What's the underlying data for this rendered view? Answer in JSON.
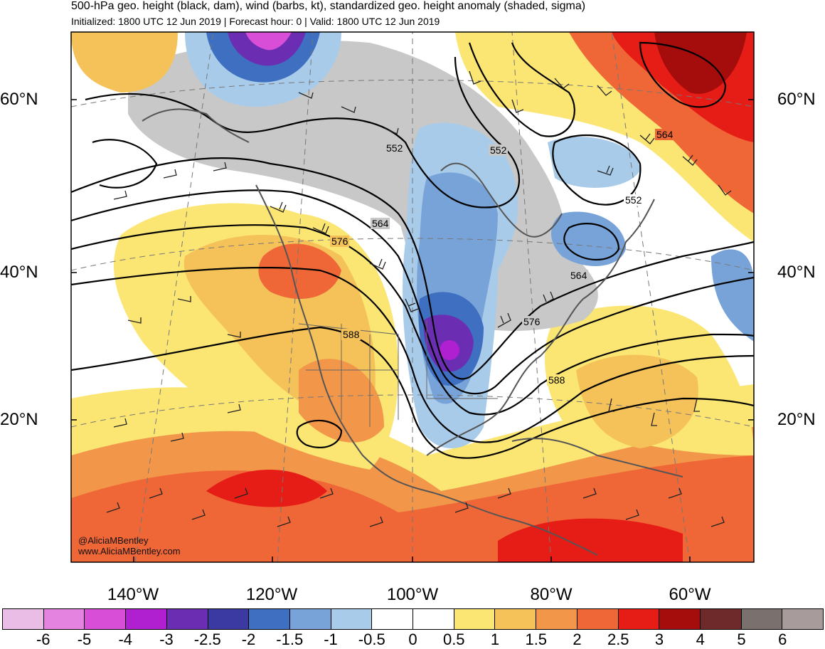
{
  "header": {
    "title": "500-hPa geo. height (black, dam), wind (barbs, kt), standardized geo. height anomaly (shaded, sigma)",
    "subtitle": "Initialized: 1800 UTC 12 Jun 2019 | Forecast hour: 0 | Valid: 1800 UTC 12 Jun 2019"
  },
  "map": {
    "lat_labels": [
      "60°N",
      "40°N",
      "20°N"
    ],
    "lon_labels": [
      "140°W",
      "120°W",
      "100°W",
      "80°W",
      "60°W"
    ],
    "contour_labels": [
      "552",
      "552",
      "552",
      "564",
      "564",
      "564",
      "576",
      "576",
      "588",
      "588"
    ],
    "credits": [
      "@AliciaMBentley",
      "www.AliciaMBentley.com"
    ]
  },
  "colorbar": {
    "colors": [
      "#eabde6",
      "#e583e0",
      "#d94ed6",
      "#b01fd0",
      "#6b2eb2",
      "#3b3aa3",
      "#3f6fc0",
      "#78a3d8",
      "#a9cbea",
      "#ffffff",
      "#ffffff",
      "#fbe673",
      "#f5c25a",
      "#f2974a",
      "#ef6637",
      "#e61c17",
      "#a50c0c",
      "#6e2a2a",
      "#7a716f",
      "#a89b9b"
    ],
    "labels": [
      "-6",
      "-5",
      "-4",
      "-3",
      "-2.5",
      "-2",
      "-1.5",
      "-1",
      "-0.5",
      "0",
      "0.5",
      "1",
      "1.5",
      "2",
      "2.5",
      "3",
      "4",
      "5",
      "6"
    ]
  }
}
